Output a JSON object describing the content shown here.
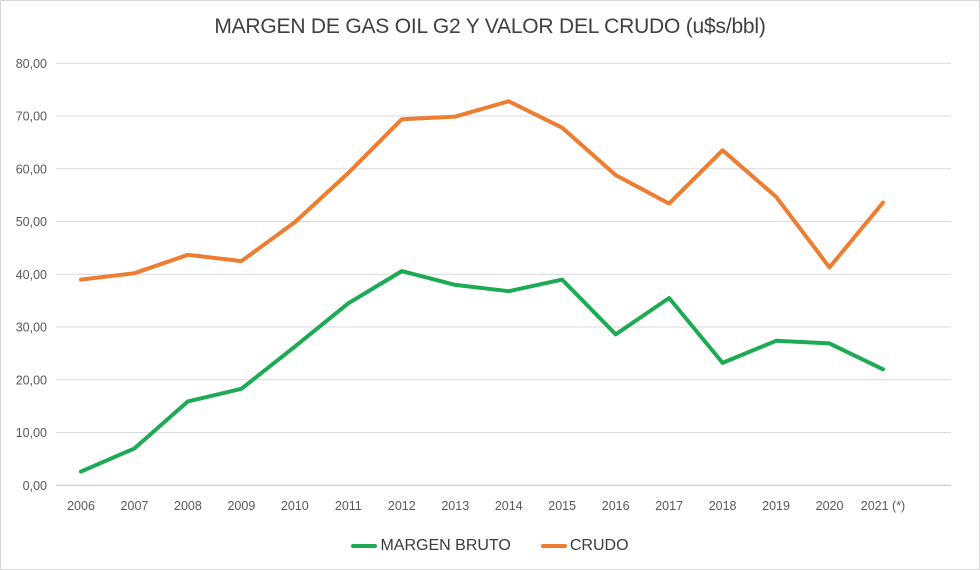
{
  "window": {
    "background": "#ffffff",
    "border_color": "#d7d7d7"
  },
  "chart_data": {
    "type": "line",
    "title": "MARGEN DE GAS OIL G2 Y VALOR DEL CRUDO (u$s/bbl)",
    "categories": [
      "2006",
      "2007",
      "2008",
      "2009",
      "2010",
      "2011",
      "2012",
      "2013",
      "2014",
      "2015",
      "2016",
      "2017",
      "2018",
      "2019",
      "2020",
      "2021 (*)"
    ],
    "series": [
      {
        "name": "MARGEN BRUTO",
        "color": "#1cab54",
        "values": [
          2.6,
          7.0,
          15.9,
          18.3,
          26.3,
          34.5,
          40.6,
          38.0,
          36.8,
          39.0,
          28.6,
          35.5,
          23.2,
          27.4,
          26.9,
          22.0
        ]
      },
      {
        "name": "CRUDO",
        "color": "#ed7d31",
        "values": [
          39.0,
          40.2,
          43.7,
          42.5,
          49.9,
          59.2,
          69.4,
          69.9,
          72.8,
          67.8,
          58.8,
          53.4,
          63.5,
          54.7,
          41.3,
          53.6
        ]
      }
    ],
    "xlabel": "",
    "ylabel": "",
    "ylim": [
      0,
      80
    ],
    "y_tick_step": 10,
    "y_ticks": [
      "0,00",
      "10,00",
      "20,00",
      "30,00",
      "40,00",
      "50,00",
      "60,00",
      "70,00",
      "80,00"
    ],
    "grid": "horizontal",
    "gridline_color": "#d9d9d9",
    "baseline_color": "#bfbfbf",
    "tick_label_color": "#595959",
    "legend_position": "bottom"
  }
}
